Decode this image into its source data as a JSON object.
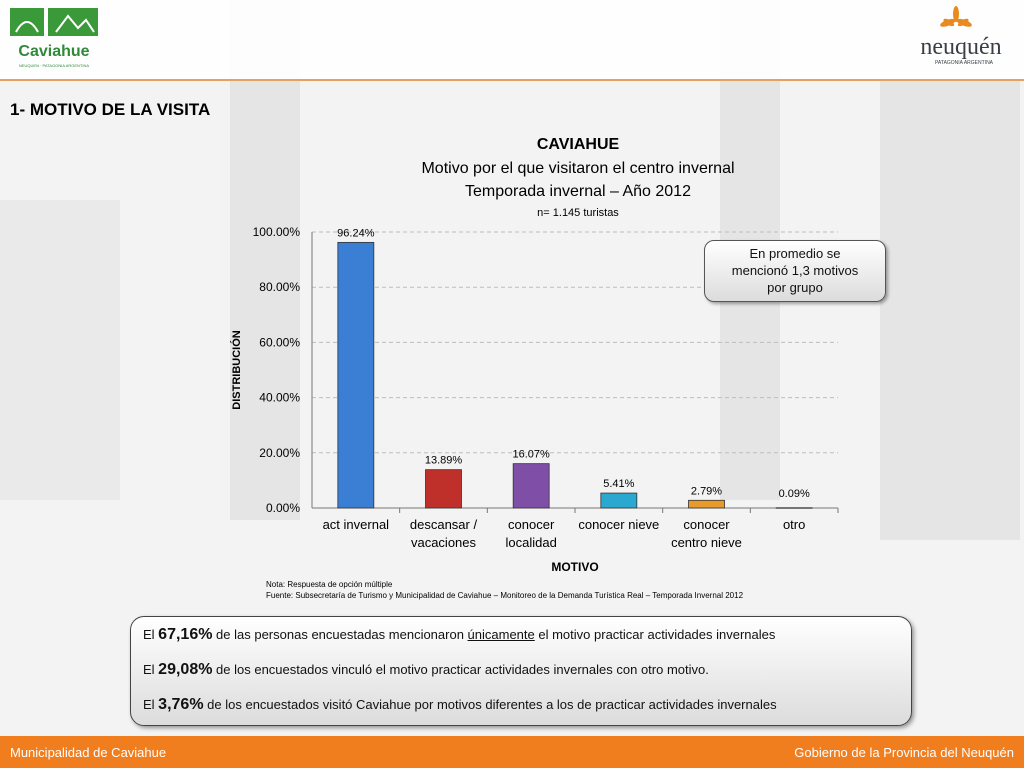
{
  "header": {
    "left_logo": {
      "name": "Caviahue",
      "tagline": "NEUQUEN · PATAGONIA ARGENTINA"
    },
    "right_logo": {
      "name": "neuquén",
      "tagline": "PATAGONIA ARGENTINA"
    }
  },
  "section_title": "1- MOTIVO DE LA VISITA",
  "chart_titles": {
    "line1": "CAVIAHUE",
    "line2": "Motivo por el que visitaron el centro invernal",
    "line3": "Temporada invernal – Año 2012",
    "line4": "n=  1.145 turistas"
  },
  "chart_data": {
    "type": "bar",
    "categories": [
      [
        "act invernal"
      ],
      [
        "descansar /",
        "vacaciones"
      ],
      [
        "conocer",
        "localidad"
      ],
      [
        "conocer nieve"
      ],
      [
        "conocer",
        "centro nieve"
      ],
      [
        "otro"
      ]
    ],
    "values": [
      96.24,
      13.89,
      16.07,
      5.41,
      2.79,
      0.09
    ],
    "value_labels": [
      "96.24%",
      "13.89%",
      "16.07%",
      "5.41%",
      "2.79%",
      "0.09%"
    ],
    "colors": [
      "#3b7fd4",
      "#c0302b",
      "#7f4fa8",
      "#2aa8cf",
      "#e89a2a",
      "#9a9a9a"
    ],
    "xlabel": "MOTIVO",
    "ylabel": "DISTRIBUCIÓN",
    "ylim": [
      0,
      100
    ],
    "yticks": [
      "0.00%",
      "20.00%",
      "40.00%",
      "60.00%",
      "80.00%",
      "100.00%"
    ],
    "grid": true
  },
  "callout": [
    "En promedio se",
    "mencionó 1,3 motivos",
    "por grupo"
  ],
  "notes": {
    "line1": "Nota: Respuesta de  opción múltiple",
    "line2": "Fuente: Subsecretaría de Turismo y Municipalidad de Caviahue – Monitoreo de la Demanda Turística Real – Temporada Invernal 2012"
  },
  "summary": {
    "r1_pre": "El ",
    "r1_val": "67,16%",
    "r1_mid": " de las personas encuestadas mencionaron ",
    "r1_u": "únicamente",
    "r1_post": " el motivo practicar  actividades invernales",
    "r2_pre": "El ",
    "r2_val": "29,08%",
    "r2_post": "  de los encuestados vinculó el motivo practicar actividades invernales con otro motivo.",
    "r3_pre": "El ",
    "r3_val": "3,76%",
    "r3_post": " de los encuestados visitó Caviahue por  motivos diferentes  a los de practicar actividades invernales"
  },
  "footer": {
    "left": "Municipalidad de Caviahue",
    "right": "Gobierno de la Provincia del Neuquén"
  }
}
